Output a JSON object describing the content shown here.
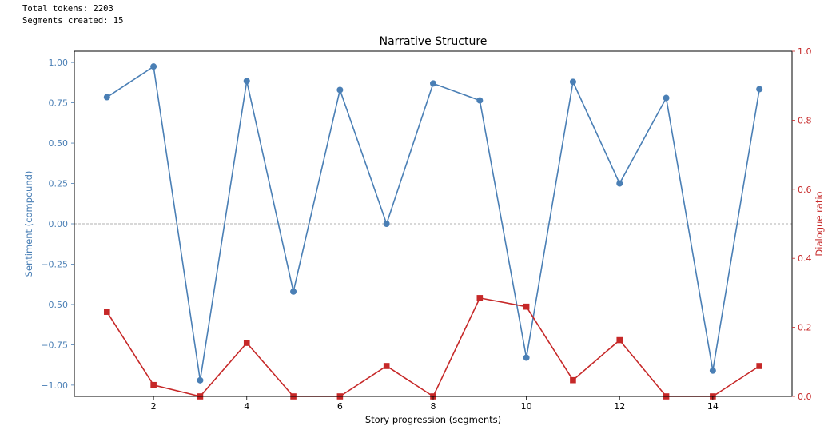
{
  "log": {
    "tokens_line": "Total tokens: 2203",
    "segments_line": "Segments created: 15"
  },
  "chart_data": {
    "type": "line",
    "title": "Narrative Structure",
    "xlabel": "Story progression (segments)",
    "ylabel": "Sentiment (compound)",
    "y2label": "Dialogue ratio",
    "x": [
      1,
      2,
      3,
      4,
      5,
      6,
      7,
      8,
      9,
      10,
      11,
      12,
      13,
      14,
      15
    ],
    "xlim": [
      0.3,
      15.7
    ],
    "ylim": [
      -1.07,
      1.07
    ],
    "y2lim": [
      0.0,
      1.0
    ],
    "xticks": [
      2,
      4,
      6,
      8,
      10,
      12,
      14
    ],
    "yticks": [
      1.0,
      0.75,
      0.5,
      0.25,
      0.0,
      -0.25,
      -0.5,
      -0.75,
      -1.0
    ],
    "ytick_labels": [
      "1.00",
      "0.75",
      "0.50",
      "0.25",
      "0.00",
      "−0.25",
      "−0.50",
      "−0.75",
      "−1.00"
    ],
    "y2ticks": [
      0.0,
      0.2,
      0.4,
      0.6,
      0.8,
      1.0
    ],
    "y2tick_labels": [
      "0.0",
      "0.2",
      "0.4",
      "0.6",
      "0.8",
      "1.0"
    ],
    "reference_line": {
      "y": 0.0,
      "style": "dashed",
      "color": "#999999"
    },
    "series": [
      {
        "axis": "left",
        "marker": "circle",
        "color": "#4a7fb5",
        "values": [
          0.785,
          0.975,
          -0.97,
          0.885,
          -0.42,
          0.83,
          0.0,
          0.87,
          0.765,
          -0.83,
          0.88,
          0.25,
          0.78,
          -0.91,
          0.835
        ]
      },
      {
        "axis": "right",
        "marker": "square",
        "color": "#c62828",
        "values": [
          0.245,
          0.033,
          0.0,
          0.155,
          0.0,
          0.0,
          0.088,
          0.0,
          0.285,
          0.26,
          0.047,
          0.163,
          0.0,
          0.0,
          0.088
        ]
      }
    ],
    "colors": {
      "left_axis": "#4a7fb5",
      "right_axis": "#c62828",
      "frame": "#000000"
    }
  }
}
